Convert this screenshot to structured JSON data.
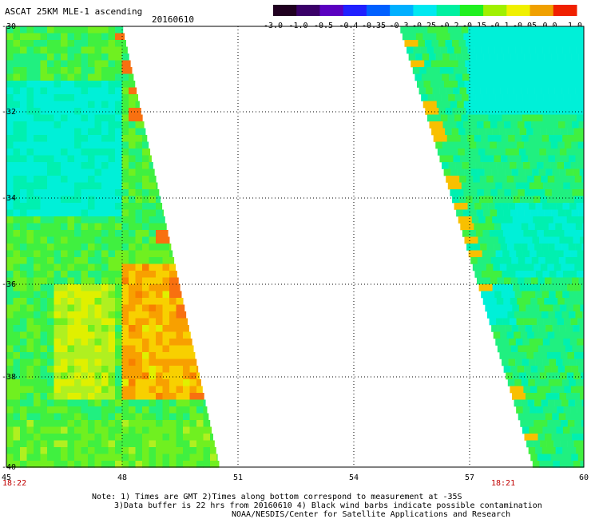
{
  "header": {
    "title": "ASCAT 25KM MLE-1 ascending",
    "date": "20160610"
  },
  "colorbar": {
    "labels": [
      "-3.0",
      "-1.0",
      "-0.5",
      "-0.4",
      "-0.35",
      "-0.3",
      "-0.25",
      "-0.2",
      "-0.15",
      "-0.1",
      "-0.05",
      "0.0",
      "1.0"
    ],
    "colors": [
      "#200020",
      "#3a0068",
      "#5a00c0",
      "#2020ff",
      "#0060ff",
      "#00b0ff",
      "#00e8f0",
      "#00f0a0",
      "#20f020",
      "#a0f000",
      "#f0f000",
      "#f0a000",
      "#f02000"
    ]
  },
  "axes": {
    "x_ticks": [
      "45",
      "48",
      "51",
      "54",
      "57",
      "60"
    ],
    "y_ticks": [
      "-30",
      "-32",
      "-34",
      "-36",
      "-38",
      "-40"
    ],
    "time_left": "18:22",
    "time_right": "18:21",
    "time_color": "#c00000"
  },
  "notes": {
    "line1": "Note: 1) Times are GMT 2)Times along bottom correspond to measurement at -35S",
    "line2": "3)Data buffer is 22 hrs from 20160610 4) Black wind barbs indicate possible contamination",
    "line3": "NOAA/NESDIS/Center for Satellite Applications and Research"
  }
}
